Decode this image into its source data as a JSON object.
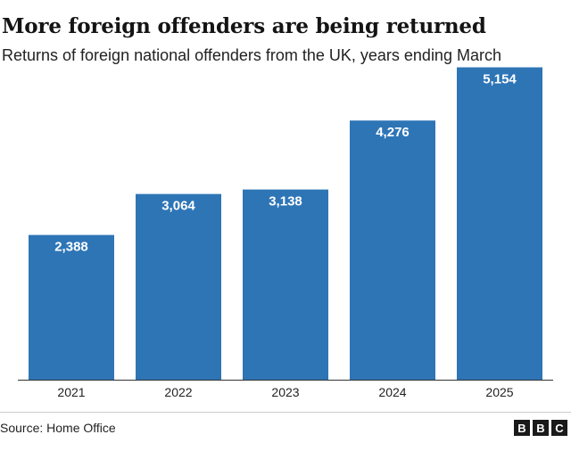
{
  "chart_data": {
    "type": "bar",
    "title": "More foreign offenders are being returned",
    "subtitle": "Returns of foreign national offenders from the UK, years ending March",
    "categories": [
      "2021",
      "2022",
      "2023",
      "2024",
      "2025"
    ],
    "values": [
      2388,
      3064,
      3138,
      4276,
      5154
    ],
    "value_labels": [
      "2,388",
      "3,064",
      "3,138",
      "4,276",
      "5,154"
    ],
    "ylim": [
      0,
      5500
    ],
    "grid": false,
    "bar_color": "#2e75b6",
    "axis_color": "#333333"
  },
  "footer": {
    "source": "Source: Home Office",
    "logo_letters": [
      "B",
      "B",
      "C"
    ]
  }
}
